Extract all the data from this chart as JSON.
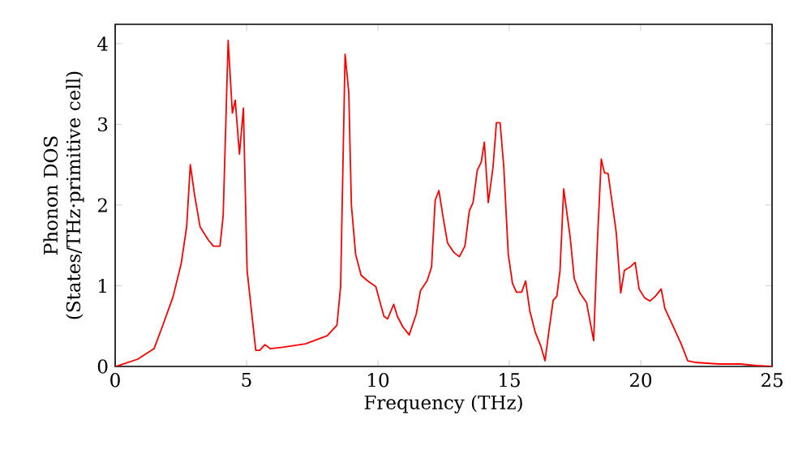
{
  "chart_data": {
    "type": "line",
    "xlabel": "Frequency (THz)",
    "ylabel": "Phonon DOS (States/THz·primitive cell)",
    "x": [
      0,
      0.04,
      0.86,
      1.48,
      1.79,
      2.2,
      2.51,
      2.72,
      2.86,
      3.02,
      3.23,
      3.54,
      3.74,
      3.99,
      4.11,
      4.3,
      4.46,
      4.57,
      4.73,
      4.88,
      5.02,
      5.35,
      5.5,
      5.7,
      5.9,
      6.42,
      7.24,
      8.07,
      8.44,
      8.58,
      8.75,
      8.89,
      8.99,
      9.15,
      9.36,
      9.61,
      9.92,
      10.06,
      10.23,
      10.37,
      10.6,
      10.74,
      10.95,
      11.19,
      11.46,
      11.62,
      11.87,
      12.04,
      12.18,
      12.32,
      12.49,
      12.65,
      12.9,
      13.1,
      13.31,
      13.48,
      13.62,
      13.78,
      13.93,
      14.05,
      14.2,
      14.38,
      14.51,
      14.65,
      14.79,
      14.96,
      15.12,
      15.27,
      15.47,
      15.62,
      15.78,
      15.99,
      16.19,
      16.36,
      16.5,
      16.67,
      16.81,
      16.93,
      17.07,
      17.32,
      17.47,
      17.67,
      17.94,
      18.21,
      18.35,
      18.5,
      18.62,
      18.76,
      19.07,
      19.24,
      19.38,
      19.59,
      19.79,
      19.94,
      20.15,
      20.35,
      20.56,
      20.78,
      20.92,
      21.23,
      21.54,
      21.79,
      22.06,
      22.98,
      23.8,
      24.4,
      25
    ],
    "series": [
      {
        "color": "#ff0000",
        "values": [
          0,
          0,
          0.09,
          0.22,
          0.49,
          0.86,
          1.27,
          1.73,
          2.5,
          2.13,
          1.73,
          1.57,
          1.49,
          1.49,
          1.87,
          4.04,
          3.14,
          3.3,
          2.63,
          3.2,
          1.19,
          0.2,
          0.2,
          0.27,
          0.22,
          0.24,
          0.28,
          0.38,
          0.51,
          0.99,
          3.87,
          3.4,
          2.0,
          1.39,
          1.13,
          1.06,
          0.99,
          0.82,
          0.62,
          0.59,
          0.77,
          0.62,
          0.49,
          0.39,
          0.65,
          0.94,
          1.06,
          1.23,
          2.06,
          2.18,
          1.83,
          1.53,
          1.41,
          1.36,
          1.49,
          1.93,
          2.03,
          2.43,
          2.53,
          2.78,
          2.03,
          2.47,
          3.02,
          3.02,
          2.47,
          1.39,
          1.03,
          0.92,
          0.92,
          1.06,
          0.69,
          0.42,
          0.26,
          0.07,
          0.42,
          0.82,
          0.87,
          1.19,
          2.2,
          1.59,
          1.09,
          0.92,
          0.79,
          0.32,
          1.53,
          2.57,
          2.4,
          2.39,
          1.66,
          0.91,
          1.19,
          1.23,
          1.29,
          0.96,
          0.85,
          0.81,
          0.87,
          0.96,
          0.72,
          0.5,
          0.28,
          0.07,
          0.05,
          0.03,
          0.03,
          0.01,
          0
        ]
      }
    ],
    "xlim": [
      0,
      25
    ],
    "ylim": [
      0,
      4.24
    ],
    "xticks": [
      0,
      5,
      10,
      15,
      20,
      25
    ],
    "yticks": [
      0,
      1,
      2,
      3,
      4
    ],
    "marker": "none",
    "line_style": "solid"
  }
}
